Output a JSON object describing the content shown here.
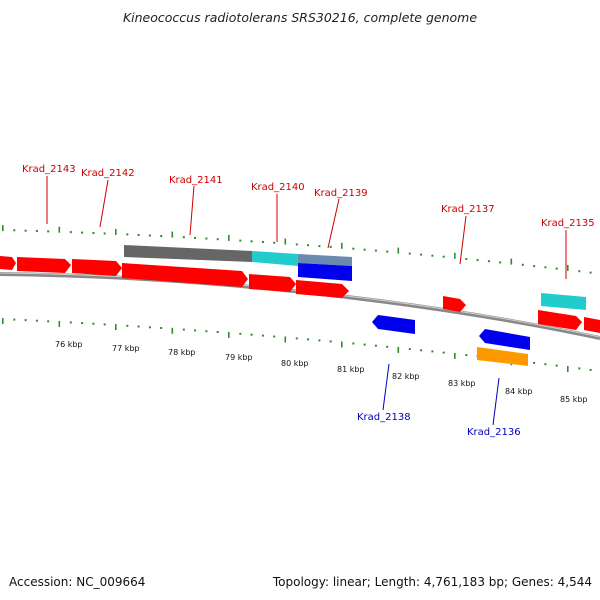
{
  "title": "Kineococcus radiotolerans SRS30216, complete genome",
  "footer": {
    "accession": "Accession: NC_009664",
    "topology": "Topology: linear; Length: 4,761,183 bp; Genes: 4,544"
  },
  "colors": {
    "cds_forward": "#ff0000",
    "cds_reverse": "#0000ee",
    "label_forward": "#cc0000",
    "label_reverse": "#0000bb",
    "tick": "#2e8b2e",
    "backbone": "#888888",
    "dark_bar": "#666666",
    "cyan": "#22cccc",
    "orange": "#ff9900"
  },
  "scale_labels": [
    "76 kbp",
    "77 kbp",
    "78 kbp",
    "79 kbp",
    "80 kbp",
    "81 kbp",
    "82 kbp",
    "83 kbp",
    "84 kbp",
    "85 kbp"
  ],
  "gene_labels_forward": [
    "Krad_2143",
    "Krad_2142",
    "Krad_2141",
    "Krad_2140",
    "Krad_2139",
    "Krad_2137",
    "Krad_2135"
  ],
  "gene_labels_reverse": [
    "Krad_2138",
    "Krad_2136"
  ]
}
